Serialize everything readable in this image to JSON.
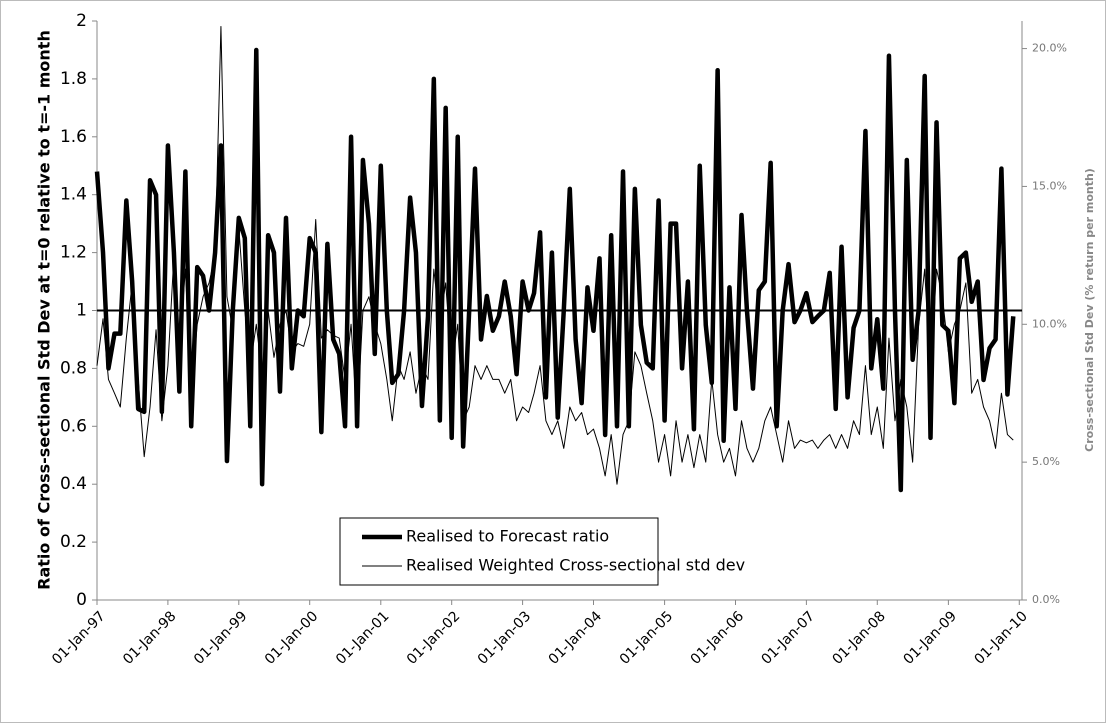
{
  "chart_data": {
    "type": "line",
    "ylabel": "Ratio of Cross-sectional Std Dev at t=0 relative to t=-1 month",
    "y2label": "Cross-sectional Std Dev (% return per month)",
    "x": [
      "1997-01-01",
      "1997-02-01",
      "1997-03-01",
      "1997-04-01",
      "1997-05-01",
      "1997-06-01",
      "1997-07-01",
      "1997-08-01",
      "1997-09-01",
      "1997-10-01",
      "1997-11-01",
      "1997-12-01",
      "1998-01-01",
      "1998-02-01",
      "1998-03-01",
      "1998-04-01",
      "1998-05-01",
      "1998-06-01",
      "1998-07-01",
      "1998-08-01",
      "1998-09-01",
      "1998-10-01",
      "1998-11-01",
      "1998-12-01",
      "1999-01-01",
      "1999-02-01",
      "1999-03-01",
      "1999-04-01",
      "1999-05-01",
      "1999-06-01",
      "1999-07-01",
      "1999-08-01",
      "1999-09-01",
      "1999-10-01",
      "1999-11-01",
      "1999-12-01",
      "2000-01-01",
      "2000-02-01",
      "2000-03-01",
      "2000-04-01",
      "2000-05-01",
      "2000-06-01",
      "2000-07-01",
      "2000-08-01",
      "2000-09-01",
      "2000-10-01",
      "2000-11-01",
      "2000-12-01",
      "2001-01-01",
      "2001-02-01",
      "2001-03-01",
      "2001-04-01",
      "2001-05-01",
      "2001-06-01",
      "2001-07-01",
      "2001-08-01",
      "2001-09-01",
      "2001-10-01",
      "2001-11-01",
      "2001-12-01",
      "2002-01-01",
      "2002-02-01",
      "2002-03-01",
      "2002-04-01",
      "2002-05-01",
      "2002-06-01",
      "2002-07-01",
      "2002-08-01",
      "2002-09-01",
      "2002-10-01",
      "2002-11-01",
      "2002-12-01",
      "2003-01-01",
      "2003-02-01",
      "2003-03-01",
      "2003-04-01",
      "2003-05-01",
      "2003-06-01",
      "2003-07-01",
      "2003-08-01",
      "2003-09-01",
      "2003-10-01",
      "2003-11-01",
      "2003-12-01",
      "2004-01-01",
      "2004-02-01",
      "2004-03-01",
      "2004-04-01",
      "2004-05-01",
      "2004-06-01",
      "2004-07-01",
      "2004-08-01",
      "2004-09-01",
      "2004-10-01",
      "2004-11-01",
      "2004-12-01",
      "2005-01-01",
      "2005-02-01",
      "2005-03-01",
      "2005-04-01",
      "2005-05-01",
      "2005-06-01",
      "2005-07-01",
      "2005-08-01",
      "2005-09-01",
      "2005-10-01",
      "2005-11-01",
      "2005-12-01",
      "2006-01-01",
      "2006-02-01",
      "2006-03-01",
      "2006-04-01",
      "2006-05-01",
      "2006-06-01",
      "2006-07-01",
      "2006-08-01",
      "2006-09-01",
      "2006-10-01",
      "2006-11-01",
      "2006-12-01",
      "2007-01-01",
      "2007-02-01",
      "2007-03-01",
      "2007-04-01",
      "2007-05-01",
      "2007-06-01",
      "2007-07-01",
      "2007-08-01",
      "2007-09-01",
      "2007-10-01",
      "2007-11-01",
      "2007-12-01",
      "2008-01-01",
      "2008-02-01",
      "2008-03-01",
      "2008-04-01",
      "2008-05-01",
      "2008-06-01",
      "2008-07-01",
      "2008-08-01",
      "2008-09-01",
      "2008-10-01",
      "2008-11-01",
      "2008-12-01",
      "2009-01-01",
      "2009-02-01",
      "2009-03-01",
      "2009-04-01",
      "2009-05-01",
      "2009-06-01",
      "2009-07-01",
      "2009-08-01",
      "2009-09-01",
      "2009-10-01",
      "2009-11-01",
      "2009-12-01"
    ],
    "series": [
      {
        "name": "Realised to Forecast ratio",
        "color": "#000000",
        "values": [
          1.48,
          1.2,
          0.8,
          0.92,
          0.92,
          1.38,
          1.1,
          0.66,
          0.65,
          1.45,
          1.4,
          0.65,
          1.57,
          1.2,
          0.72,
          1.48,
          0.6,
          1.15,
          1.12,
          1.0,
          1.2,
          1.57,
          0.48,
          1.0,
          1.32,
          1.25,
          0.6,
          1.9,
          0.4,
          1.26,
          1.2,
          0.72,
          1.32,
          0.8,
          1.0,
          0.98,
          1.25,
          1.2,
          0.58,
          1.23,
          0.9,
          0.85,
          0.6,
          1.6,
          0.6,
          1.52,
          1.3,
          0.85,
          1.5,
          1.0,
          0.75,
          0.78,
          1.0,
          1.39,
          1.2,
          0.67,
          0.98,
          1.8,
          0.62,
          1.7,
          0.56,
          1.6,
          0.53,
          1.0,
          1.49,
          0.9,
          1.05,
          0.93,
          0.98,
          1.1,
          0.98,
          0.78,
          1.1,
          1.0,
          1.06,
          1.27,
          0.7,
          1.2,
          0.63,
          1.0,
          1.42,
          0.9,
          0.68,
          1.08,
          0.93,
          1.18,
          0.57,
          1.26,
          0.6,
          1.48,
          0.6,
          1.42,
          0.95,
          0.82,
          0.8,
          1.38,
          0.62,
          1.3,
          1.3,
          0.8,
          1.1,
          0.59,
          1.5,
          0.95,
          0.75,
          1.83,
          0.55,
          1.08,
          0.66,
          1.33,
          1.0,
          0.73,
          1.07,
          1.1,
          1.51,
          0.6,
          1.0,
          1.16,
          0.96,
          1.0,
          1.06,
          0.96,
          0.98,
          1.0,
          1.13,
          0.66,
          1.22,
          0.7,
          0.94,
          1.0,
          1.62,
          0.8,
          0.97,
          0.73,
          1.88,
          1.0,
          0.38,
          1.52,
          0.83,
          1.0,
          1.81,
          0.56,
          1.65,
          0.95,
          0.93,
          0.68,
          1.18,
          1.2,
          1.03,
          1.1,
          0.76,
          0.87,
          0.9,
          1.49,
          0.71,
          0.98
        ]
      },
      {
        "name": "Realised Weighted Cross-sectional std dev",
        "color": "#000000",
        "axis": "y2",
        "values": [
          8.5,
          10.2,
          8.0,
          7.5,
          7.0,
          9.5,
          11.5,
          8.0,
          5.2,
          7.0,
          9.8,
          6.5,
          8.5,
          12.5,
          9.0,
          12.0,
          7.5,
          10.0,
          11.0,
          11.5,
          12.5,
          20.8,
          11.0,
          9.8,
          13.5,
          10.5,
          8.5,
          10.0,
          8.2,
          10.5,
          8.8,
          10.0,
          10.5,
          9.0,
          9.3,
          9.2,
          10.0,
          13.8,
          9.5,
          9.8,
          9.6,
          9.5,
          8.0,
          10.0,
          6.5,
          10.5,
          11.0,
          10.0,
          9.3,
          8.0,
          6.5,
          8.5,
          8.0,
          9.0,
          7.5,
          8.5,
          8.0,
          12.0,
          10.0,
          11.5,
          8.5,
          10.0,
          6.5,
          7.0,
          8.5,
          8.0,
          8.5,
          8.0,
          8.0,
          7.5,
          8.0,
          6.5,
          7.0,
          6.8,
          7.5,
          8.5,
          6.5,
          6.0,
          6.5,
          5.5,
          7.0,
          6.5,
          6.8,
          6.0,
          6.2,
          5.5,
          4.5,
          6.0,
          4.2,
          6.0,
          6.5,
          9.0,
          8.5,
          7.5,
          6.5,
          5.0,
          6.0,
          4.5,
          6.5,
          5.0,
          6.0,
          4.8,
          6.0,
          5.0,
          8.0,
          6.0,
          5.0,
          5.5,
          4.5,
          6.5,
          5.5,
          5.0,
          5.5,
          6.5,
          7.0,
          6.0,
          5.0,
          6.5,
          5.5,
          5.8,
          5.7,
          5.8,
          5.5,
          5.8,
          6.0,
          5.5,
          6.0,
          5.5,
          6.5,
          6.0,
          8.5,
          6.0,
          7.0,
          5.5,
          9.5,
          6.5,
          8.0,
          7.0,
          5.0,
          10.0,
          12.0,
          8.0,
          12.0,
          11.0,
          9.0,
          10.0,
          10.5,
          11.5,
          7.5,
          8.0,
          7.0,
          6.5,
          5.5,
          7.5,
          6.0,
          5.8
        ]
      }
    ],
    "reference_line": 1,
    "xlim": [
      "1997-01-01",
      "2010-01-15"
    ],
    "xticks": [
      {
        "value": "1997-01-01",
        "label": "01-Jan-97"
      },
      {
        "value": "1998-01-01",
        "label": "01-Jan-98"
      },
      {
        "value": "1999-01-01",
        "label": "01-Jan-99"
      },
      {
        "value": "2000-01-01",
        "label": "01-Jan-00"
      },
      {
        "value": "2001-01-01",
        "label": "01-Jan-01"
      },
      {
        "value": "2002-01-01",
        "label": "01-Jan-02"
      },
      {
        "value": "2003-01-01",
        "label": "01-Jan-03"
      },
      {
        "value": "2004-01-01",
        "label": "01-Jan-04"
      },
      {
        "value": "2005-01-01",
        "label": "01-Jan-05"
      },
      {
        "value": "2006-01-01",
        "label": "01-Jan-06"
      },
      {
        "value": "2007-01-01",
        "label": "01-Jan-07"
      },
      {
        "value": "2008-01-01",
        "label": "01-Jan-08"
      },
      {
        "value": "2009-01-01",
        "label": "01-Jan-09"
      },
      {
        "value": "2010-01-01",
        "label": "01-Jan-10"
      }
    ],
    "ylim": [
      0,
      2
    ],
    "yticks": [
      0,
      0.2,
      0.4,
      0.6,
      0.8,
      1,
      1.2,
      1.4,
      1.6,
      1.8,
      2
    ],
    "y2lim": [
      0,
      21
    ],
    "y2ticks": [
      {
        "value": 0,
        "label": "0.0%"
      },
      {
        "value": 5,
        "label": "5.0%"
      },
      {
        "value": 10,
        "label": "10.0%"
      },
      {
        "value": 15,
        "label": "15.0%"
      },
      {
        "value": 20,
        "label": "20.0%"
      }
    ],
    "legend": "bottom-center"
  }
}
